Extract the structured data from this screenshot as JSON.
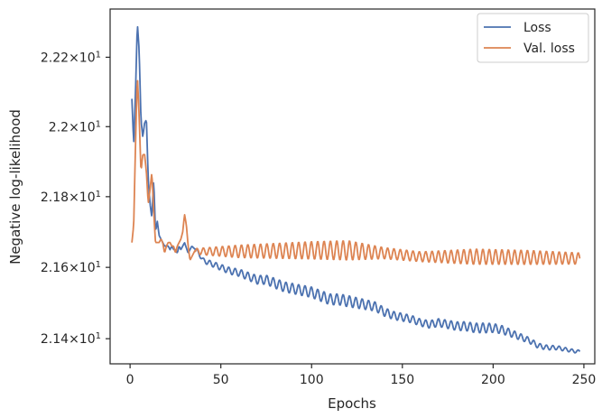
{
  "chart_data": {
    "type": "line",
    "title": "",
    "xlabel": "Epochs",
    "ylabel": "Negative log-likelihood",
    "y_scale": "log",
    "xlim": [
      -11,
      256
    ],
    "ylim": [
      21.33,
      22.34
    ],
    "x_ticks": [
      {
        "value": 0,
        "label": "0"
      },
      {
        "value": 50,
        "label": "50"
      },
      {
        "value": 100,
        "label": "100"
      },
      {
        "value": 150,
        "label": "150"
      },
      {
        "value": 200,
        "label": "200"
      },
      {
        "value": 250,
        "label": "250"
      }
    ],
    "y_ticks": [
      {
        "value": 21.4,
        "mantissa": "2.14",
        "times": "×",
        "base": "10",
        "exp": "1"
      },
      {
        "value": 21.6,
        "mantissa": "2.16",
        "times": "×",
        "base": "10",
        "exp": "1"
      },
      {
        "value": 21.8,
        "mantissa": "2.18",
        "times": "×",
        "base": "10",
        "exp": "1"
      },
      {
        "value": 22.0,
        "mantissa": "2.2",
        "times": "×",
        "base": "10",
        "exp": "1"
      },
      {
        "value": 22.2,
        "mantissa": "2.22",
        "times": "×",
        "base": "10",
        "exp": "1"
      }
    ],
    "grid": false,
    "legend_position": "top-right",
    "series": [
      {
        "name": "Loss",
        "color": "#4c72b0",
        "x": [
          1,
          2,
          3,
          4,
          5,
          6,
          7,
          8,
          9,
          10,
          11,
          12,
          13,
          14,
          15,
          16,
          17,
          18,
          19,
          20,
          21,
          22,
          23,
          24,
          25,
          26,
          27,
          28,
          29,
          30,
          32,
          34,
          36,
          38,
          40,
          45,
          50,
          55,
          60,
          65,
          70,
          75,
          80,
          85,
          90,
          95,
          100,
          105,
          110,
          115,
          120,
          125,
          130,
          135,
          140,
          145,
          150,
          155,
          160,
          165,
          170,
          175,
          180,
          185,
          190,
          195,
          200,
          205,
          210,
          215,
          220,
          225,
          230,
          235,
          240,
          245,
          248
        ],
        "y": [
          22.08,
          21.95,
          22.1,
          22.3,
          22.22,
          22.02,
          21.97,
          22.01,
          22.02,
          21.85,
          21.78,
          21.74,
          21.85,
          21.7,
          21.73,
          21.69,
          21.68,
          21.67,
          21.66,
          21.66,
          21.66,
          21.65,
          21.66,
          21.65,
          21.65,
          21.64,
          21.66,
          21.65,
          21.66,
          21.67,
          21.64,
          21.66,
          21.65,
          21.64,
          21.62,
          21.61,
          21.6,
          21.59,
          21.585,
          21.575,
          21.565,
          21.565,
          21.555,
          21.545,
          21.54,
          21.535,
          21.53,
          21.52,
          21.51,
          21.51,
          21.505,
          21.5,
          21.495,
          21.49,
          21.475,
          21.465,
          21.46,
          21.455,
          21.445,
          21.44,
          21.445,
          21.44,
          21.435,
          21.435,
          21.43,
          21.43,
          21.43,
          21.425,
          21.415,
          21.405,
          21.395,
          21.38,
          21.375,
          21.375,
          21.37,
          21.365,
          21.364
        ],
        "oscillation": [
          {
            "x_from": 36,
            "x_to": 250,
            "period": 3.5,
            "amplitude": [
              0.006,
              0.014,
              0.016,
              0.012,
              0.01,
              0.014,
              0.008,
              0.004
            ],
            "amplitude_at_x": [
              36,
              80,
              120,
              140,
              160,
              195,
              220,
              248
            ]
          }
        ]
      },
      {
        "name": "Val. loss",
        "color": "#dd8452",
        "x": [
          1,
          2,
          3,
          4,
          5,
          6,
          7,
          8,
          9,
          10,
          11,
          12,
          13,
          14,
          15,
          16,
          17,
          18,
          19,
          20,
          21,
          22,
          23,
          24,
          25,
          26,
          27,
          28,
          29,
          30,
          31,
          32,
          33,
          34,
          35,
          36,
          38,
          40,
          248
        ],
        "y": [
          21.67,
          21.72,
          21.95,
          22.15,
          22.03,
          21.87,
          21.92,
          21.92,
          21.87,
          21.78,
          21.82,
          21.87,
          21.76,
          21.67,
          21.67,
          21.67,
          21.68,
          21.67,
          21.64,
          21.66,
          21.67,
          21.67,
          21.66,
          21.66,
          21.64,
          21.66,
          21.67,
          21.68,
          21.7,
          21.75,
          21.72,
          21.66,
          21.62,
          21.63,
          21.64,
          21.65,
          21.64,
          21.645,
          21.623
        ],
        "oscillation": [
          {
            "x_from": 36,
            "x_to": 250,
            "period": 3.5,
            "center": [
              21.645,
              21.645,
              21.648,
              21.648,
              21.64,
              21.63,
              21.63,
              21.628,
              21.625
            ],
            "center_at_x": [
              36,
              60,
              100,
              120,
              140,
              160,
              190,
              220,
              248
            ],
            "amplitude": [
              0.008,
              0.018,
              0.025,
              0.028,
              0.016,
              0.014,
              0.022,
              0.02,
              0.016
            ],
            "amplitude_at_x": [
              36,
              60,
              100,
              120,
              140,
              160,
              190,
              220,
              248
            ]
          }
        ]
      }
    ]
  }
}
